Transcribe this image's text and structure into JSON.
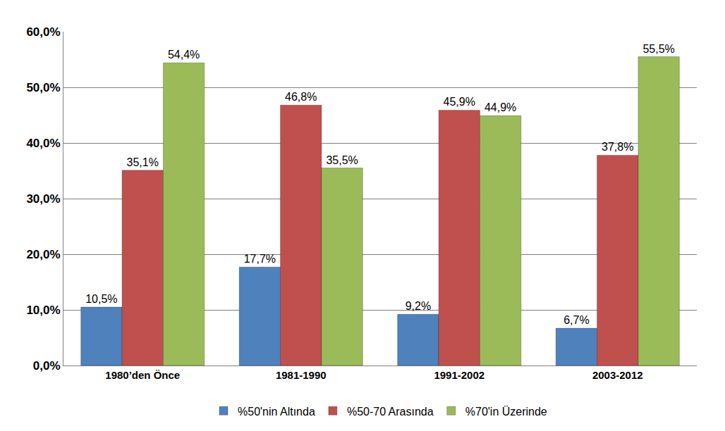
{
  "chart_data": {
    "type": "bar",
    "categories": [
      "1980’den Önce",
      "1981-1990",
      "1991-2002",
      "2003-2012"
    ],
    "series": [
      {
        "name": "%50'nin Altında",
        "color": "#4F81BD",
        "values": [
          10.5,
          17.7,
          9.2,
          6.7
        ],
        "value_labels": [
          "10,5%",
          "17,7%",
          "9,2%",
          "6,7%"
        ]
      },
      {
        "name": "%50-70 Arasında",
        "color": "#C0504D",
        "values": [
          35.1,
          46.8,
          45.9,
          37.8
        ],
        "value_labels": [
          "35,1%",
          "46,8%",
          "45,9%",
          "37,8%"
        ]
      },
      {
        "name": "%70'in Üzerinde",
        "color": "#9BBB59",
        "values": [
          54.4,
          35.5,
          44.9,
          55.5
        ],
        "value_labels": [
          "54,4%",
          "35,5%",
          "44,9%",
          "55,5%"
        ]
      }
    ],
    "ylim": [
      0,
      60
    ],
    "yticks": [
      {
        "value": 0,
        "label": "0,0%"
      },
      {
        "value": 10,
        "label": "10,0%"
      },
      {
        "value": 20,
        "label": "20,0%"
      },
      {
        "value": 30,
        "label": "30,0%"
      },
      {
        "value": 40,
        "label": "40,0%"
      },
      {
        "value": 50,
        "label": "50,0%"
      },
      {
        "value": 60,
        "label": "60,0%"
      }
    ],
    "grid": true,
    "legend": "bottom",
    "data_labels": true
  }
}
